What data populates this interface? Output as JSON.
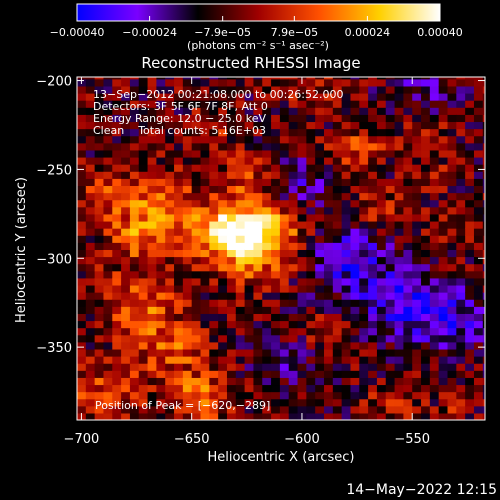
{
  "chart_data": {
    "type": "heatmap",
    "title": "Reconstructed RHESSI Image",
    "xlabel": "Heliocentric X (arcsec)",
    "ylabel": "Heliocentric Y (arcsec)",
    "xlim": [
      -702,
      -517
    ],
    "ylim": [
      -391,
      -198
    ],
    "x_ticks": [
      -700,
      -650,
      -600,
      -550
    ],
    "y_ticks": [
      -200,
      -250,
      -300,
      -350
    ],
    "x_tick_labels": [
      "−700",
      "−650",
      "−600",
      "−550"
    ],
    "y_tick_labels": [
      "−200",
      "−250",
      "−300",
      "−350"
    ],
    "colorbar": {
      "range": [
        -0.0004,
        0.0004
      ],
      "tick_values": [
        -0.0004,
        -0.00024,
        -7.9e-05,
        7.9e-05,
        0.00024,
        0.0004
      ],
      "tick_labels": [
        "−0.00040",
        "−0.00024",
        "−7.9e−05",
        "7.9e−05",
        "0.00024",
        "0.00040"
      ],
      "unit_label": "(photons cm⁻² s⁻¹ asec⁻²)",
      "colors": [
        "#0000ff",
        "#7a00ff",
        "#000000",
        "#a00000",
        "#ff5000",
        "#ffd000",
        "#ffffff"
      ]
    },
    "annotations": [
      "13−Sep−2012 00:21:08.000 to 00:26:52.000",
      "Detectors: 3F 5F 6F 7F 8F, Att 0",
      "Energy Range: 12.0 − 25.0 keV",
      "Clean    Total counts: 5.16E+03"
    ],
    "peak": {
      "label": "Position of Peak = [−620,−289]",
      "x": -620,
      "y": -289
    },
    "grid": false
  },
  "footer": {
    "timestamp": "14−May−2022 12:15"
  }
}
